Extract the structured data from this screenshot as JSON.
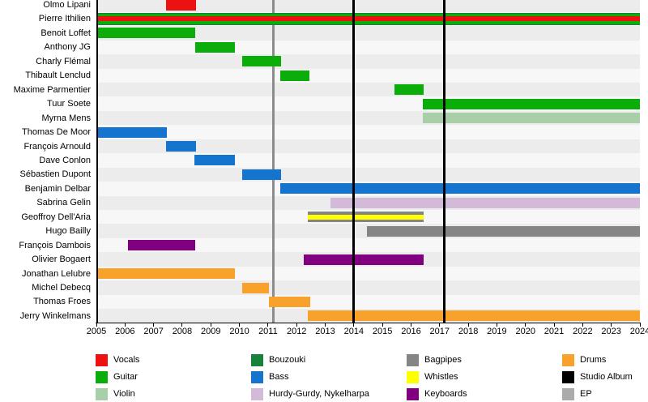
{
  "chart_data": {
    "type": "bar",
    "subtype": "gantt-band-member-timeline",
    "title": "",
    "x_axis": {
      "min": 2005,
      "max": 2024,
      "ticks": [
        2005,
        2006,
        2007,
        2008,
        2009,
        2010,
        2011,
        2012,
        2013,
        2014,
        2015,
        2016,
        2017,
        2018,
        2019,
        2020,
        2021,
        2022,
        2023,
        2024
      ]
    },
    "members": [
      {
        "name": "Olmo Lipani",
        "instrument": "Vocals",
        "color": "vocals",
        "start": 2007.43,
        "end": 2008.48
      },
      {
        "name": "Pierre Ithilien",
        "instrument": "Guitar, Vocals, Bouzouki",
        "color": "guitar",
        "inner": "vocals",
        "edge": "bouzouki",
        "start": 2005.05,
        "end": 2024
      },
      {
        "name": "Benoit Loffet",
        "instrument": "Guitar",
        "color": "guitar",
        "start": 2005.05,
        "end": 2008.45
      },
      {
        "name": "Anthony JG",
        "instrument": "Guitar",
        "color": "guitar",
        "start": 2008.45,
        "end": 2009.84
      },
      {
        "name": "Charly Flémal",
        "instrument": "Guitar",
        "color": "guitar",
        "start": 2010.1,
        "end": 2011.45
      },
      {
        "name": "Thibault Lenclud",
        "instrument": "Guitar",
        "color": "guitar",
        "start": 2011.43,
        "end": 2012.45
      },
      {
        "name": "Maxime Parmentier",
        "instrument": "Guitar",
        "color": "guitar",
        "start": 2015.42,
        "end": 2016.44
      },
      {
        "name": "Tuur Soete",
        "instrument": "Guitar",
        "color": "guitar",
        "start": 2016.41,
        "end": 2024
      },
      {
        "name": "Myrna Mens",
        "instrument": "Violin",
        "color": "violin",
        "start": 2016.41,
        "end": 2024
      },
      {
        "name": "Thomas De Moor",
        "instrument": "Bass",
        "color": "bass",
        "start": 2005.05,
        "end": 2007.46
      },
      {
        "name": "François Arnould",
        "instrument": "Bass",
        "color": "bass",
        "start": 2007.43,
        "end": 2008.48
      },
      {
        "name": "Dave Conlon",
        "instrument": "Bass",
        "color": "bass",
        "start": 2008.43,
        "end": 2009.84
      },
      {
        "name": "Sébastien Dupont",
        "instrument": "Bass",
        "color": "bass",
        "start": 2010.1,
        "end": 2011.45
      },
      {
        "name": "Benjamin Delbar",
        "instrument": "Bass",
        "color": "bass",
        "start": 2011.43,
        "end": 2024
      },
      {
        "name": "Sabrina Gelin",
        "instrument": "Hurdy-Gurdy, Nykelharpa",
        "color": "hurdygurdy",
        "start": 2013.18,
        "end": 2024
      },
      {
        "name": "Geoffroy Dell'Aria",
        "instrument": "Bagpipes, Whistles",
        "color": "bagpipes",
        "inner": "whistles",
        "start": 2012.39,
        "end": 2016.44
      },
      {
        "name": "Hugo Bailly",
        "instrument": "Bagpipes",
        "color": "bagpipes",
        "start": 2014.46,
        "end": 2024
      },
      {
        "name": "François Dambois",
        "instrument": "Keyboards",
        "color": "keyboards",
        "start": 2006.1,
        "end": 2008.45
      },
      {
        "name": "Olivier Bogaert",
        "instrument": "Keyboards",
        "color": "keyboards",
        "start": 2012.25,
        "end": 2016.44
      },
      {
        "name": "Jonathan Lelubre",
        "instrument": "Drums",
        "color": "drums",
        "start": 2005.05,
        "end": 2009.84
      },
      {
        "name": "Michel Debecq",
        "instrument": "Drums",
        "color": "drums",
        "start": 2010.1,
        "end": 2011.03
      },
      {
        "name": "Thomas Froes",
        "instrument": "Drums",
        "color": "drums",
        "start": 2011.03,
        "end": 2012.47
      },
      {
        "name": "Jerry Winkelmans",
        "instrument": "Drums",
        "color": "drums",
        "start": 2012.39,
        "end": 2024
      }
    ],
    "event_lines": [
      {
        "year": 2011.2,
        "label": "EP",
        "color": "ep_line"
      },
      {
        "year": 2014,
        "label": "Studio Album",
        "color": "album"
      },
      {
        "year": 2017.15,
        "label": "Studio Album",
        "color": "album"
      }
    ],
    "legend": {
      "position": "bottom",
      "columns": [
        [
          {
            "label": "Vocals",
            "color": "vocals"
          },
          {
            "label": "Guitar",
            "color": "guitar"
          },
          {
            "label": "Violin",
            "color": "violin"
          }
        ],
        [
          {
            "label": "Bouzouki",
            "color": "bouzouki"
          },
          {
            "label": "Bass",
            "color": "bass"
          },
          {
            "label": "Hurdy-Gurdy, Nykelharpa",
            "color": "hurdygurdy"
          }
        ],
        [
          {
            "label": "Bagpipes",
            "color": "bagpipes"
          },
          {
            "label": "Whistles",
            "color": "whistles"
          },
          {
            "label": "Keyboards",
            "color": "keyboards"
          }
        ],
        [
          {
            "label": "Drums",
            "color": "drums"
          },
          {
            "label": "Studio Album",
            "color": "album"
          },
          {
            "label": "EP",
            "color": "ep"
          }
        ]
      ]
    }
  },
  "colors": {
    "vocals": "#EE1111",
    "guitar": "#0BAD0B",
    "violin": "#A9CFA9",
    "bouzouki": "#18813B",
    "bass": "#1574CD",
    "hurdygurdy": "#D3BAD8",
    "bagpipes": "#858585",
    "whistles": "#FFFF00",
    "keyboards": "#800080",
    "drums": "#F9A22B",
    "album": "#000000",
    "ep": "#ABABAB",
    "ep_line": "#8C8C8C",
    "stripe_even": "#ECECEC",
    "stripe_odd": "#F7F7F7"
  }
}
